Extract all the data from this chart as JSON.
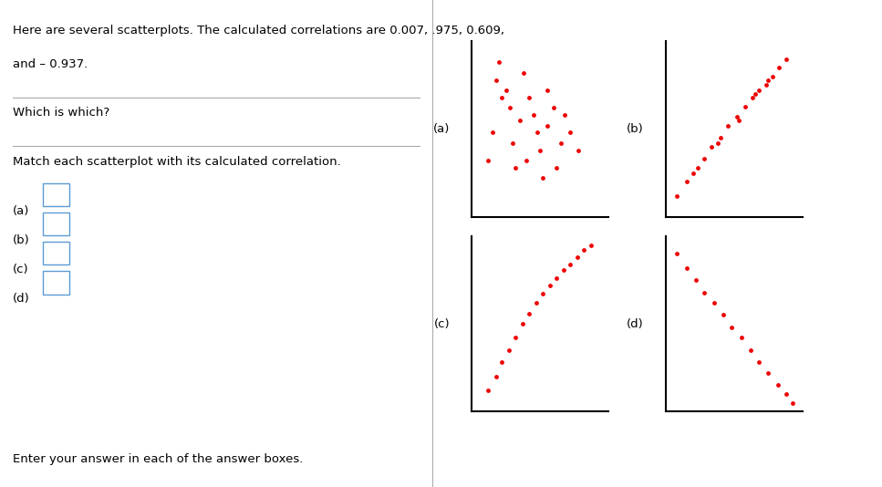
{
  "title_text": "Here are several scatterplots. The calculated correlations are 0.007, .975, 0.609,",
  "title_text2": "and – 0.937.",
  "question1": "Which is which?",
  "question2": "Match each scatterplot with its calculated correlation.",
  "labels_left": [
    "(a)",
    "(b)",
    "(c)",
    "(d)"
  ],
  "dot_color": "#ee0000",
  "dot_size": 12,
  "bg_color": "#ffffff",
  "divider_color": "#aaaaaa",
  "scatter_a": {
    "x": [
      0.18,
      0.22,
      0.28,
      0.15,
      0.38,
      0.45,
      0.55,
      0.65,
      0.4,
      0.5,
      0.25,
      0.32,
      0.48,
      0.6,
      0.2,
      0.3,
      0.52,
      0.68,
      0.42,
      0.12,
      0.72,
      0.78,
      0.55,
      0.62,
      0.35
    ],
    "y": [
      0.78,
      0.68,
      0.62,
      0.48,
      0.82,
      0.58,
      0.52,
      0.42,
      0.32,
      0.38,
      0.72,
      0.28,
      0.48,
      0.62,
      0.88,
      0.42,
      0.22,
      0.58,
      0.68,
      0.32,
      0.48,
      0.38,
      0.72,
      0.28,
      0.55
    ]
  },
  "scatter_b": {
    "x": [
      0.08,
      0.15,
      0.2,
      0.28,
      0.33,
      0.4,
      0.45,
      0.52,
      0.58,
      0.63,
      0.68,
      0.73,
      0.78,
      0.83,
      0.88,
      0.23,
      0.38,
      0.53,
      0.65,
      0.75
    ],
    "y": [
      0.12,
      0.2,
      0.25,
      0.33,
      0.4,
      0.45,
      0.52,
      0.57,
      0.63,
      0.68,
      0.72,
      0.75,
      0.8,
      0.85,
      0.9,
      0.28,
      0.42,
      0.55,
      0.7,
      0.78
    ]
  },
  "scatter_c": {
    "x": [
      0.12,
      0.18,
      0.22,
      0.27,
      0.32,
      0.37,
      0.42,
      0.47,
      0.52,
      0.57,
      0.62,
      0.67,
      0.72,
      0.77,
      0.82,
      0.87
    ],
    "y": [
      0.12,
      0.2,
      0.28,
      0.35,
      0.42,
      0.5,
      0.56,
      0.62,
      0.67,
      0.72,
      0.76,
      0.81,
      0.84,
      0.88,
      0.92,
      0.95
    ]
  },
  "scatter_d": {
    "x": [
      0.08,
      0.15,
      0.22,
      0.28,
      0.35,
      0.42,
      0.48,
      0.55,
      0.62,
      0.68,
      0.75,
      0.82,
      0.88,
      0.93
    ],
    "y": [
      0.9,
      0.82,
      0.75,
      0.68,
      0.62,
      0.55,
      0.48,
      0.42,
      0.35,
      0.28,
      0.22,
      0.15,
      0.1,
      0.05
    ]
  }
}
